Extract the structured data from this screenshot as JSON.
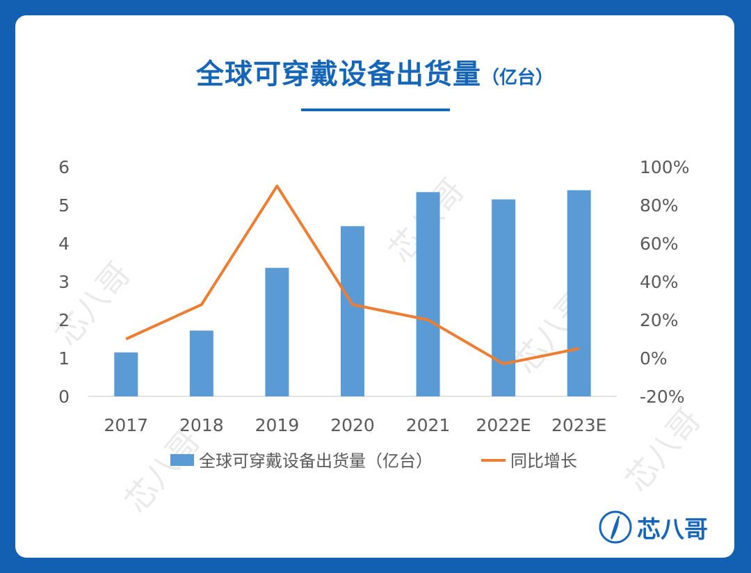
{
  "title": "全球可穿戴设备出货量",
  "title_unit": "（亿台）",
  "logo_text": "芯八哥",
  "watermark_text": "芯八哥",
  "colors": {
    "background": "#1360b3",
    "accent": "#1565b8",
    "bar": "#5b9bd5",
    "line": "#ed7d31",
    "axis_text": "#595959"
  },
  "chart_data": {
    "type": "bar",
    "categories": [
      "2017",
      "2018",
      "2019",
      "2020",
      "2021",
      "2022E",
      "2023E"
    ],
    "series": [
      {
        "name": "全球可穿戴设备出货量（亿台）",
        "type": "bar",
        "axis": "left",
        "values": [
          1.15,
          1.72,
          3.36,
          4.45,
          5.34,
          5.15,
          5.39
        ]
      },
      {
        "name": "同比增长",
        "type": "line",
        "axis": "right",
        "values": [
          0.1,
          0.28,
          0.9,
          0.28,
          0.2,
          -0.03,
          0.05
        ]
      }
    ],
    "y_left": {
      "ylim": [
        0,
        6
      ],
      "ticks": [
        "0",
        "1",
        "2",
        "3",
        "4",
        "5",
        "6"
      ]
    },
    "y_right": {
      "ylim": [
        -0.2,
        1.0
      ],
      "ticks": [
        "-20%",
        "0%",
        "20%",
        "40%",
        "60%",
        "80%",
        "100%"
      ]
    },
    "legend_position": "bottom",
    "grid": false
  }
}
